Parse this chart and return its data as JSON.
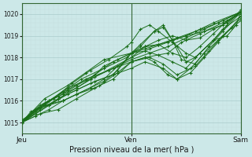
{
  "title": "Pression niveau de la mer( hPa )",
  "bg_color": "#cce8e8",
  "grid_color_major": "#aacccc",
  "grid_color_minor": "#c4dede",
  "line_color": "#1a6e1a",
  "marker_color": "#1a6e1a",
  "ylim": [
    1014.5,
    1020.5
  ],
  "yticks": [
    1015,
    1016,
    1017,
    1018,
    1019,
    1020
  ],
  "total_hours": 48,
  "jeu_hour": 0,
  "ven_hour": 24,
  "sam_hour": 48,
  "series": [
    [
      0,
      1015.0,
      2,
      1015.5,
      4,
      1015.7,
      6,
      1015.8,
      8,
      1016.1,
      12,
      1016.5,
      16,
      1016.9,
      20,
      1017.2,
      24,
      1018.2,
      27,
      1018.3,
      30,
      1018.1,
      33,
      1017.8,
      36,
      1017.5,
      39,
      1018.2,
      42,
      1018.8,
      45,
      1019.0,
      47,
      1019.5,
      48,
      1020.1
    ],
    [
      0,
      1015.0,
      3,
      1015.4,
      6,
      1015.8,
      9,
      1016.0,
      12,
      1016.3,
      15,
      1016.6,
      18,
      1017.0,
      21,
      1017.6,
      24,
      1018.0,
      27,
      1018.5,
      30,
      1018.8,
      33,
      1019.0,
      36,
      1018.8,
      39,
      1018.9,
      42,
      1019.3,
      45,
      1019.6,
      48,
      1020.1
    ],
    [
      0,
      1015.0,
      3,
      1015.3,
      6,
      1015.6,
      9,
      1016.0,
      12,
      1016.3,
      15,
      1016.6,
      18,
      1016.9,
      21,
      1017.4,
      24,
      1018.2,
      27,
      1018.5,
      30,
      1018.6,
      33,
      1018.2,
      36,
      1018.0,
      39,
      1018.5,
      42,
      1019.1,
      45,
      1019.7,
      48,
      1020.1
    ],
    [
      0,
      1015.0,
      3,
      1015.6,
      6,
      1016.0,
      9,
      1016.3,
      12,
      1016.6,
      15,
      1017.0,
      18,
      1017.6,
      21,
      1017.9,
      24,
      1018.2,
      27,
      1018.4,
      30,
      1018.6,
      33,
      1018.8,
      36,
      1019.0,
      39,
      1019.3,
      42,
      1019.6,
      48,
      1020.1
    ],
    [
      0,
      1015.0,
      4,
      1015.6,
      8,
      1016.1,
      12,
      1016.6,
      16,
      1017.1,
      24,
      1018.0,
      28,
      1018.4,
      32,
      1018.7,
      36,
      1019.0,
      40,
      1019.2,
      44,
      1019.5,
      48,
      1020.1
    ],
    [
      0,
      1015.0,
      4,
      1015.8,
      8,
      1016.2,
      12,
      1016.7,
      16,
      1017.2,
      20,
      1017.8,
      24,
      1018.2,
      27,
      1018.5,
      30,
      1018.6,
      34,
      1018.9,
      38,
      1019.2,
      43,
      1019.6,
      48,
      1020.1
    ],
    [
      0,
      1015.0,
      5,
      1016.1,
      10,
      1016.7,
      14,
      1017.3,
      18,
      1017.9,
      24,
      1018.2,
      26,
      1018.6,
      29,
      1019.2,
      31,
      1019.5,
      33,
      1018.8,
      35,
      1017.9,
      38,
      1017.7,
      41,
      1018.5,
      44,
      1019.2,
      48,
      1020.1
    ],
    [
      0,
      1015.0,
      3,
      1015.5,
      7,
      1016.1,
      11,
      1016.8,
      15,
      1017.4,
      19,
      1017.9,
      23,
      1018.5,
      24,
      1018.7,
      26,
      1019.3,
      28,
      1019.5,
      30,
      1019.2,
      33,
      1018.7,
      36,
      1018.2,
      38,
      1018.0,
      42,
      1018.8,
      45,
      1019.5,
      48,
      1020.2
    ],
    [
      0,
      1015.1,
      5,
      1015.8,
      9,
      1016.0,
      12,
      1016.3,
      16,
      1016.6,
      20,
      1017.0,
      24,
      1017.8,
      27,
      1018.0,
      32,
      1018.2,
      35,
      1018.7,
      39,
      1019.1,
      44,
      1019.6,
      48,
      1020.0
    ],
    [
      0,
      1015.1,
      6,
      1016.0,
      10,
      1016.6,
      15,
      1017.0,
      20,
      1017.5,
      24,
      1017.9,
      28,
      1018.2,
      32,
      1018.5,
      36,
      1018.9,
      40,
      1019.3,
      44,
      1019.7,
      48,
      1020.1
    ],
    [
      0,
      1015.0,
      4,
      1015.4,
      8,
      1015.6,
      12,
      1016.1,
      17,
      1016.7,
      21,
      1017.3,
      24,
      1017.8,
      27,
      1018.0,
      29,
      1017.8,
      32,
      1017.2,
      34,
      1017.0,
      37,
      1017.5,
      40,
      1018.2,
      43,
      1018.8,
      46,
      1019.4,
      48,
      1019.8
    ],
    [
      0,
      1015.0,
      6,
      1015.8,
      10,
      1016.3,
      15,
      1016.8,
      20,
      1017.2,
      24,
      1017.5,
      27,
      1017.8,
      31,
      1017.5,
      34,
      1017.0,
      37,
      1017.3,
      40,
      1018.0,
      43,
      1018.7,
      46,
      1019.4,
      48,
      1019.9
    ],
    [
      0,
      1015.0,
      5,
      1015.9,
      10,
      1016.5,
      14,
      1017.0,
      19,
      1017.4,
      24,
      1017.8,
      28,
      1018.0,
      31,
      1017.7,
      34,
      1017.2,
      38,
      1017.6,
      41,
      1018.3,
      44,
      1019.0,
      48,
      1019.7
    ],
    [
      0,
      1015.0,
      4,
      1015.7,
      9,
      1016.4,
      13,
      1017.0,
      18,
      1017.5,
      23,
      1018.0,
      24,
      1018.2,
      26,
      1018.5,
      29,
      1019.2,
      31,
      1019.4,
      34,
      1018.5,
      36,
      1017.8,
      38,
      1018.0,
      42,
      1018.8,
      44,
      1019.3,
      48,
      1019.9
    ]
  ]
}
